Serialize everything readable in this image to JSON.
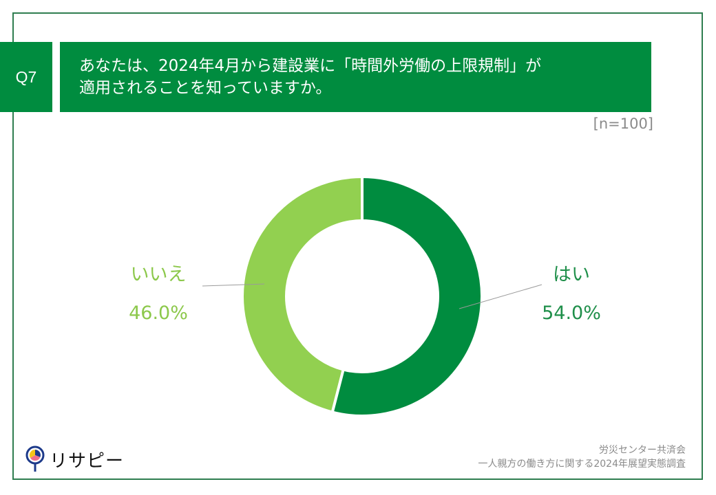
{
  "question": {
    "number": "Q7",
    "line1": "あなたは、2024年4月から建設業に「時間外労働の上限規制」が",
    "line2": "適用されることを知っていますか。"
  },
  "sample_size": "[n=100]",
  "labels": {
    "yes": {
      "name": "はい",
      "value": "54.0%"
    },
    "no": {
      "name": "いいえ",
      "value": "46.0%"
    }
  },
  "logo": {
    "text": "リサピー",
    "icon": "magnifier-pie-icon"
  },
  "source": {
    "line1": "労災センター共済会",
    "line2": "一人親方の働き方に関する2024年展望実態調査"
  },
  "colors": {
    "yes": "#008c3f",
    "no": "#92d050",
    "frame": "#2e7d4f",
    "header": "#008c3f"
  },
  "chart_data": {
    "type": "pie",
    "subtype": "donut",
    "title": "あなたは、2024年4月から建設業に「時間外労働の上限規制」が適用されることを知っていますか。",
    "categories": [
      "はい",
      "いいえ"
    ],
    "values": [
      54.0,
      46.0
    ],
    "unit": "%",
    "n": 100,
    "colors": [
      "#008c3f",
      "#92d050"
    ],
    "start_angle": "12 o'clock, clockwise",
    "legend": "none (direct labels with leader lines)"
  }
}
